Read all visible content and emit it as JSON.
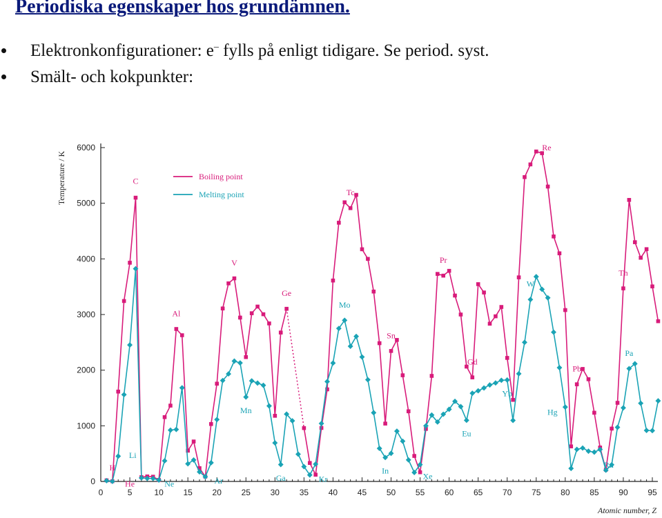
{
  "slide": {
    "title": "Periodiska egenskaper hos grundämnen.",
    "bullet1_a": "Elektronkonfigurationer: e",
    "bullet1_sup": "–",
    "bullet1_b": " fylls på enligt tidigare. Se period. syst.",
    "bullet2": "Smält- och kokpunkter:"
  },
  "colors": {
    "boiling": "#d81b7a",
    "melting": "#1aa3b5",
    "axis": "#222222"
  },
  "chart_data": {
    "type": "line",
    "ylabel": "Temperature / K",
    "xlabel": "Atomic number, Z",
    "xlim": [
      0,
      95
    ],
    "ylim": [
      0,
      6000
    ],
    "x_ticks": [
      0,
      5,
      10,
      15,
      20,
      25,
      30,
      35,
      40,
      45,
      50,
      55,
      60,
      65,
      70,
      75,
      80,
      85,
      90,
      95
    ],
    "y_ticks": [
      0,
      1000,
      2000,
      3000,
      4000,
      5000,
      6000
    ],
    "legend": {
      "placement": "top-left",
      "entries": [
        "Boiling point",
        "Melting point"
      ]
    },
    "series": [
      {
        "name": "Boiling point",
        "points": [
          [
            1,
            20
          ],
          [
            2,
            4
          ],
          [
            3,
            1615
          ],
          [
            4,
            3243
          ],
          [
            5,
            3931
          ],
          [
            6,
            5100
          ],
          [
            7,
            77
          ],
          [
            8,
            90
          ],
          [
            9,
            85
          ],
          [
            10,
            27
          ],
          [
            11,
            1156
          ],
          [
            12,
            1363
          ],
          [
            13,
            2740
          ],
          [
            14,
            2628
          ],
          [
            15,
            553
          ],
          [
            16,
            718
          ],
          [
            17,
            239
          ],
          [
            18,
            87
          ],
          [
            19,
            1032
          ],
          [
            20,
            1757
          ],
          [
            21,
            3109
          ],
          [
            22,
            3560
          ],
          [
            23,
            3650
          ],
          [
            24,
            2945
          ],
          [
            25,
            2235
          ],
          [
            26,
            3023
          ],
          [
            27,
            3143
          ],
          [
            28,
            3005
          ],
          [
            29,
            2840
          ],
          [
            30,
            1180
          ],
          [
            31,
            2676
          ],
          [
            32,
            3103
          ],
          [
            35,
            959
          ],
          [
            36,
            332
          ],
          [
            37,
            121
          ],
          [
            38,
            961
          ],
          [
            39,
            1655
          ],
          [
            40,
            3611
          ],
          [
            41,
            4650
          ],
          [
            42,
            5017
          ],
          [
            43,
            4912
          ],
          [
            44,
            5150
          ],
          [
            45,
            4173
          ],
          [
            46,
            4000
          ],
          [
            47,
            3413
          ],
          [
            48,
            2485
          ],
          [
            49,
            1040
          ],
          [
            50,
            2345
          ],
          [
            51,
            2543
          ],
          [
            52,
            1908
          ],
          [
            53,
            1261
          ],
          [
            54,
            458
          ],
          [
            55,
            165
          ],
          [
            56,
            944
          ],
          [
            57,
            1897
          ],
          [
            58,
            3730
          ],
          [
            59,
            3699
          ],
          [
            60,
            3785
          ],
          [
            61,
            3341
          ],
          [
            62,
            3000
          ],
          [
            63,
            2064
          ],
          [
            64,
            1870
          ],
          [
            65,
            3546
          ],
          [
            66,
            3396
          ],
          [
            67,
            2835
          ],
          [
            68,
            2968
          ],
          [
            69,
            3136
          ],
          [
            70,
            2220
          ],
          [
            71,
            1466
          ],
          [
            72,
            3668
          ],
          [
            73,
            5470
          ],
          [
            74,
            5698
          ],
          [
            75,
            5930
          ],
          [
            76,
            5900
          ],
          [
            77,
            5300
          ],
          [
            78,
            4403
          ],
          [
            79,
            4100
          ],
          [
            80,
            3080
          ],
          [
            81,
            630
          ],
          [
            82,
            1746
          ],
          [
            83,
            2022
          ],
          [
            84,
            1837
          ],
          [
            85,
            1235
          ],
          [
            86,
            610
          ],
          [
            87,
            211
          ],
          [
            88,
            950
          ],
          [
            89,
            1413
          ],
          [
            90,
            3470
          ],
          [
            91,
            5060
          ],
          [
            92,
            4300
          ],
          [
            93,
            4020
          ],
          [
            94,
            4175
          ],
          [
            95,
            3505
          ],
          [
            96,
            2880
          ]
        ]
      },
      {
        "name": "Melting point",
        "points": [
          [
            1,
            14
          ],
          [
            2,
            1
          ],
          [
            3,
            454
          ],
          [
            4,
            1560
          ],
          [
            5,
            2453
          ],
          [
            6,
            3823
          ],
          [
            7,
            63
          ],
          [
            8,
            54
          ],
          [
            9,
            53
          ],
          [
            10,
            25
          ],
          [
            11,
            371
          ],
          [
            12,
            922
          ],
          [
            13,
            934
          ],
          [
            14,
            1683
          ],
          [
            15,
            317
          ],
          [
            16,
            386
          ],
          [
            17,
            172
          ],
          [
            18,
            84
          ],
          [
            19,
            336
          ],
          [
            20,
            1112
          ],
          [
            21,
            1814
          ],
          [
            22,
            1933
          ],
          [
            23,
            2163
          ],
          [
            24,
            2130
          ],
          [
            25,
            1517
          ],
          [
            26,
            1808
          ],
          [
            27,
            1768
          ],
          [
            28,
            1728
          ],
          [
            29,
            1357
          ],
          [
            30,
            693
          ],
          [
            31,
            303
          ],
          [
            32,
            1211
          ],
          [
            33,
            1090
          ],
          [
            34,
            490
          ],
          [
            35,
            266
          ],
          [
            36,
            116
          ],
          [
            37,
            312
          ],
          [
            38,
            1042
          ],
          [
            39,
            1795
          ],
          [
            40,
            2128
          ],
          [
            41,
            2750
          ],
          [
            42,
            2896
          ],
          [
            43,
            2430
          ],
          [
            44,
            2607
          ],
          [
            45,
            2237
          ],
          [
            46,
            1828
          ],
          [
            47,
            1235
          ],
          [
            48,
            594
          ],
          [
            49,
            430
          ],
          [
            50,
            505
          ],
          [
            51,
            904
          ],
          [
            52,
            723
          ],
          [
            53,
            387
          ],
          [
            54,
            161
          ],
          [
            55,
            302
          ],
          [
            56,
            1000
          ],
          [
            57,
            1193
          ],
          [
            58,
            1068
          ],
          [
            59,
            1208
          ],
          [
            60,
            1297
          ],
          [
            61,
            1440
          ],
          [
            62,
            1345
          ],
          [
            63,
            1099
          ],
          [
            64,
            1585
          ],
          [
            65,
            1629
          ],
          [
            66,
            1680
          ],
          [
            67,
            1734
          ],
          [
            68,
            1770
          ],
          [
            69,
            1818
          ],
          [
            70,
            1824
          ],
          [
            71,
            1097
          ],
          [
            72,
            1936
          ],
          [
            73,
            2500
          ],
          [
            74,
            3269
          ],
          [
            75,
            3680
          ],
          [
            76,
            3453
          ],
          [
            77,
            3300
          ],
          [
            78,
            2683
          ],
          [
            79,
            2045
          ],
          [
            80,
            1337
          ],
          [
            81,
            234
          ],
          [
            82,
            577
          ],
          [
            83,
            600
          ],
          [
            84,
            544
          ],
          [
            85,
            527
          ],
          [
            86,
            575
          ],
          [
            87,
            202
          ],
          [
            88,
            300
          ],
          [
            89,
            973
          ],
          [
            90,
            1323
          ],
          [
            91,
            2028
          ],
          [
            92,
            2115
          ],
          [
            93,
            1405
          ],
          [
            94,
            917
          ],
          [
            95,
            913
          ],
          [
            96,
            1449
          ]
        ]
      }
    ],
    "boiling_dotted_segment": [
      [
        32,
        3103
      ],
      [
        35,
        959
      ]
    ],
    "annotations": [
      {
        "text": "H",
        "x": 1,
        "series": "Boiling point",
        "dz": 1,
        "dt": 180
      },
      {
        "text": "He",
        "x": 2,
        "series": "Boiling point",
        "dz": 3,
        "dt": -100
      },
      {
        "text": "Li",
        "x": 3,
        "series": "Melting point",
        "dz": 2.5,
        "dt": -30
      },
      {
        "text": "C",
        "x": 6,
        "series": "Boiling point",
        "dz": 0,
        "dt": 250
      },
      {
        "text": "Ne",
        "x": 10,
        "series": "Melting point",
        "dz": 1.8,
        "dt": -120
      },
      {
        "text": "Al",
        "x": 13,
        "series": "Boiling point",
        "dz": 0,
        "dt": 230
      },
      {
        "text": "Ar",
        "x": 18,
        "series": "Melting point",
        "dz": 2.3,
        "dt": -120
      },
      {
        "text": "V",
        "x": 23,
        "series": "Boiling point",
        "dz": 0,
        "dt": 230
      },
      {
        "text": "Mn",
        "x": 25,
        "series": "Melting point",
        "dz": 0,
        "dt": -290
      },
      {
        "text": "Ge",
        "x": 32,
        "series": "Boiling point",
        "dz": 0,
        "dt": 230
      },
      {
        "text": "Ga",
        "x": 31,
        "series": "Melting point",
        "dz": 0,
        "dt": -290
      },
      {
        "text": "Kr",
        "x": 36,
        "series": "Melting point",
        "dz": 2.3,
        "dt": -120
      },
      {
        "text": "Tc",
        "x": 43,
        "series": "Boiling point",
        "dz": 0,
        "dt": 230
      },
      {
        "text": "Mo",
        "x": 42,
        "series": "Melting point",
        "dz": 0,
        "dt": 230
      },
      {
        "text": "Sn",
        "x": 50,
        "series": "Boiling point",
        "dz": 0,
        "dt": 230
      },
      {
        "text": "In",
        "x": 49,
        "series": "Melting point",
        "dz": 0,
        "dt": -290
      },
      {
        "text": "Xe",
        "x": 54,
        "series": "Melting point",
        "dz": 2.3,
        "dt": -120
      },
      {
        "text": "Pr",
        "x": 59,
        "series": "Boiling point",
        "dz": 0,
        "dt": 230
      },
      {
        "text": "Gd",
        "x": 64,
        "series": "Boiling point",
        "dz": 0,
        "dt": 230
      },
      {
        "text": "Eu",
        "x": 63,
        "series": "Melting point",
        "dz": 0,
        "dt": -290
      },
      {
        "text": "Re",
        "x": 75,
        "series": "Boiling point",
        "dz": 1.8,
        "dt": 20
      },
      {
        "text": "W",
        "x": 74,
        "series": "Melting point",
        "dz": 0,
        "dt": 230
      },
      {
        "text": "Yb",
        "x": 70,
        "series": "Melting point",
        "dz": 0,
        "dt": -290
      },
      {
        "text": "Pb",
        "x": 82,
        "series": "Boiling point",
        "dz": 0,
        "dt": 230
      },
      {
        "text": "Hg",
        "x": 80,
        "series": "Melting point",
        "dz": -2.2,
        "dt": -140
      },
      {
        "text": "Th",
        "x": 90,
        "series": "Boiling point",
        "dz": 0,
        "dt": 230
      },
      {
        "text": "Pa",
        "x": 91,
        "series": "Melting point",
        "dz": 0,
        "dt": 230
      },
      {
        "text": "Rn",
        "x": 86,
        "series": "Melting point",
        "dz": 1.5,
        "dt": -330
      }
    ]
  }
}
